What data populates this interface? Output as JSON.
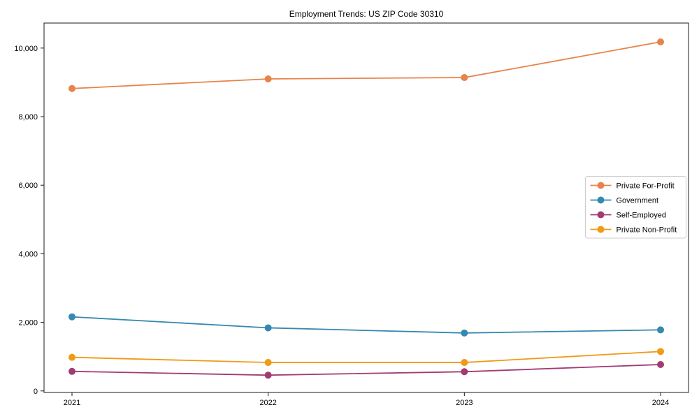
{
  "chart_data": {
    "type": "line",
    "title": "Employment Trends: US ZIP Code 30310",
    "categories": [
      "2021",
      "2022",
      "2023",
      "2024"
    ],
    "series": [
      {
        "name": "Private For-Profit",
        "color": "#e8834a",
        "values": [
          8820,
          9100,
          9140,
          10180
        ]
      },
      {
        "name": "Government",
        "color": "#3588b0",
        "values": [
          2160,
          1840,
          1690,
          1780
        ]
      },
      {
        "name": "Self-Employed",
        "color": "#a23b72",
        "values": [
          570,
          460,
          560,
          770
        ]
      },
      {
        "name": "Private Non-Profit",
        "color": "#f09a16",
        "values": [
          980,
          830,
          830,
          1150
        ]
      }
    ],
    "xlabel": "",
    "ylabel": "",
    "ylim": [
      -45,
      10730
    ],
    "yticks": [
      {
        "value": 0,
        "label": "0"
      },
      {
        "value": 2000,
        "label": "2,000"
      },
      {
        "value": 4000,
        "label": "4,000"
      },
      {
        "value": 6000,
        "label": "6,000"
      },
      {
        "value": 8000,
        "label": "8,000"
      },
      {
        "value": 10000,
        "label": "10,000"
      }
    ],
    "grid": false,
    "legend_position": "right-middle",
    "frame_color": "#1a1a1a",
    "legend_border_color": "#cccccc",
    "background_color": "#ffffff"
  }
}
